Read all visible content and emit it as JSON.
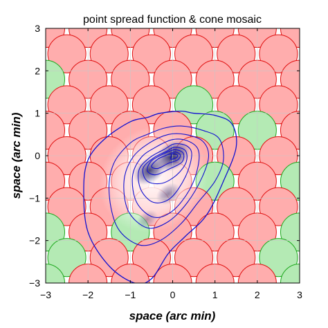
{
  "chart_data": {
    "type": "scatter",
    "title": "point spread function & cone mosaic",
    "xlabel": "space (arc min)",
    "ylabel": "space (arc min)",
    "xlim": [
      -3,
      3
    ],
    "ylim": [
      -3,
      3
    ],
    "xticks": [
      -3,
      -2,
      -1,
      0,
      1,
      2,
      3
    ],
    "yticks": [
      -3,
      -2,
      -1,
      0,
      1,
      2,
      3
    ],
    "grid": true,
    "colors": {
      "l_cone_fill": "#ffadad",
      "l_cone_stroke": "#e01010",
      "m_cone_fill": "#b4eab4",
      "m_cone_stroke": "#1ea81e",
      "contour": "#1010d0",
      "psf_core": "#1c1c5a"
    },
    "cone_diameter_arcmin": 0.9,
    "cone_mosaic": [
      {
        "x": -3.0,
        "y": 3.0,
        "type": "L"
      },
      {
        "x": -2.0,
        "y": 3.0,
        "type": "L"
      },
      {
        "x": -1.0,
        "y": 3.0,
        "type": "L"
      },
      {
        "x": 0.0,
        "y": 3.0,
        "type": "L"
      },
      {
        "x": 1.0,
        "y": 3.0,
        "type": "L"
      },
      {
        "x": 2.0,
        "y": 3.0,
        "type": "L"
      },
      {
        "x": 3.0,
        "y": 3.0,
        "type": "L"
      },
      {
        "x": -2.5,
        "y": 2.4,
        "type": "L"
      },
      {
        "x": -1.5,
        "y": 2.4,
        "type": "L"
      },
      {
        "x": -0.5,
        "y": 2.4,
        "type": "L"
      },
      {
        "x": 0.5,
        "y": 2.4,
        "type": "L"
      },
      {
        "x": 1.5,
        "y": 2.4,
        "type": "L"
      },
      {
        "x": 2.5,
        "y": 2.4,
        "type": "L"
      },
      {
        "x": -3.0,
        "y": 1.8,
        "type": "M"
      },
      {
        "x": -2.0,
        "y": 1.8,
        "type": "L"
      },
      {
        "x": -1.0,
        "y": 1.8,
        "type": "L"
      },
      {
        "x": 0.0,
        "y": 1.8,
        "type": "L"
      },
      {
        "x": 1.0,
        "y": 1.8,
        "type": "L"
      },
      {
        "x": 2.0,
        "y": 1.8,
        "type": "L"
      },
      {
        "x": 3.0,
        "y": 1.8,
        "type": "L"
      },
      {
        "x": -2.5,
        "y": 1.2,
        "type": "L"
      },
      {
        "x": -1.5,
        "y": 1.2,
        "type": "L"
      },
      {
        "x": -0.5,
        "y": 1.2,
        "type": "L"
      },
      {
        "x": 0.5,
        "y": 1.2,
        "type": "M"
      },
      {
        "x": 1.5,
        "y": 1.2,
        "type": "L"
      },
      {
        "x": 2.5,
        "y": 1.2,
        "type": "L"
      },
      {
        "x": -3.0,
        "y": 0.6,
        "type": "L"
      },
      {
        "x": -2.0,
        "y": 0.6,
        "type": "L"
      },
      {
        "x": -1.0,
        "y": 0.6,
        "type": "L"
      },
      {
        "x": 0.0,
        "y": 0.6,
        "type": "L"
      },
      {
        "x": 1.0,
        "y": 0.6,
        "type": "M"
      },
      {
        "x": 2.0,
        "y": 0.6,
        "type": "M"
      },
      {
        "x": 3.0,
        "y": 0.6,
        "type": "L"
      },
      {
        "x": -2.5,
        "y": 0.0,
        "type": "L"
      },
      {
        "x": -1.5,
        "y": 0.0,
        "type": "L"
      },
      {
        "x": -0.5,
        "y": 0.0,
        "type": "L"
      },
      {
        "x": 0.5,
        "y": 0.0,
        "type": "L"
      },
      {
        "x": 1.5,
        "y": 0.0,
        "type": "L"
      },
      {
        "x": 2.5,
        "y": 0.0,
        "type": "L"
      },
      {
        "x": -3.0,
        "y": -0.6,
        "type": "L"
      },
      {
        "x": -2.0,
        "y": -0.6,
        "type": "L"
      },
      {
        "x": -1.0,
        "y": -0.6,
        "type": "L"
      },
      {
        "x": 0.0,
        "y": -0.6,
        "type": "L"
      },
      {
        "x": 1.0,
        "y": -0.6,
        "type": "M"
      },
      {
        "x": 2.0,
        "y": -0.6,
        "type": "L"
      },
      {
        "x": 3.0,
        "y": -0.6,
        "type": "M"
      },
      {
        "x": -2.5,
        "y": -1.2,
        "type": "L"
      },
      {
        "x": -1.5,
        "y": -1.2,
        "type": "L"
      },
      {
        "x": -0.5,
        "y": -1.2,
        "type": "L"
      },
      {
        "x": 0.5,
        "y": -1.2,
        "type": "L"
      },
      {
        "x": 1.5,
        "y": -1.2,
        "type": "L"
      },
      {
        "x": 2.5,
        "y": -1.2,
        "type": "L"
      },
      {
        "x": -3.0,
        "y": -1.8,
        "type": "M"
      },
      {
        "x": -2.0,
        "y": -1.8,
        "type": "L"
      },
      {
        "x": -1.0,
        "y": -1.8,
        "type": "M"
      },
      {
        "x": 0.0,
        "y": -1.8,
        "type": "L"
      },
      {
        "x": 1.0,
        "y": -1.8,
        "type": "L"
      },
      {
        "x": 2.0,
        "y": -1.8,
        "type": "L"
      },
      {
        "x": 3.0,
        "y": -1.8,
        "type": "M"
      },
      {
        "x": -2.5,
        "y": -2.4,
        "type": "M"
      },
      {
        "x": -1.5,
        "y": -2.4,
        "type": "L"
      },
      {
        "x": -0.5,
        "y": -2.4,
        "type": "L"
      },
      {
        "x": 0.5,
        "y": -2.4,
        "type": "L"
      },
      {
        "x": 1.5,
        "y": -2.4,
        "type": "L"
      },
      {
        "x": 2.5,
        "y": -2.4,
        "type": "M"
      },
      {
        "x": -3.0,
        "y": -3.0,
        "type": "M"
      },
      {
        "x": -2.0,
        "y": -3.0,
        "type": "L"
      },
      {
        "x": -1.0,
        "y": -3.0,
        "type": "L"
      },
      {
        "x": 0.0,
        "y": -3.0,
        "type": "L"
      },
      {
        "x": 1.0,
        "y": -3.0,
        "type": "L"
      },
      {
        "x": 2.0,
        "y": -3.0,
        "type": "L"
      },
      {
        "x": 3.0,
        "y": -3.0,
        "type": "M"
      }
    ],
    "psf_contours": [
      [
        [
          -0.3,
          1.0
        ],
        [
          0.2,
          1.05
        ],
        [
          0.5,
          1.0
        ],
        [
          1.0,
          0.95
        ],
        [
          1.4,
          0.75
        ],
        [
          1.5,
          0.2
        ],
        [
          1.2,
          -0.6
        ],
        [
          0.8,
          -1.4
        ],
        [
          0.3,
          -1.9
        ],
        [
          -0.1,
          -2.3
        ],
        [
          -0.5,
          -2.9
        ],
        [
          -0.9,
          -3.0
        ],
        [
          -1.5,
          -2.6
        ],
        [
          -2.0,
          -1.8
        ],
        [
          -2.1,
          -0.8
        ],
        [
          -2.0,
          -0.1
        ],
        [
          -1.6,
          0.4
        ],
        [
          -1.0,
          0.8
        ],
        [
          -0.6,
          0.9
        ]
      ],
      [
        [
          -0.2,
          0.65
        ],
        [
          0.2,
          0.7
        ],
        [
          0.7,
          0.6
        ],
        [
          1.1,
          0.4
        ],
        [
          1.2,
          -0.1
        ],
        [
          1.0,
          -0.6
        ],
        [
          0.6,
          -1.1
        ],
        [
          0.2,
          -1.6
        ],
        [
          -0.3,
          -2.0
        ],
        [
          -0.8,
          -2.1
        ],
        [
          -1.3,
          -1.7
        ],
        [
          -1.5,
          -0.9
        ],
        [
          -1.4,
          -0.2
        ],
        [
          -1.0,
          0.3
        ],
        [
          -0.6,
          0.5
        ]
      ],
      [
        [
          -0.1,
          0.5
        ],
        [
          0.3,
          0.5
        ],
        [
          0.7,
          0.35
        ],
        [
          0.85,
          0.0
        ],
        [
          0.7,
          -0.5
        ],
        [
          0.35,
          -1.1
        ],
        [
          -0.1,
          -1.55
        ],
        [
          -0.6,
          -1.7
        ],
        [
          -1.05,
          -1.3
        ],
        [
          -1.15,
          -0.6
        ],
        [
          -0.95,
          -0.05
        ],
        [
          -0.55,
          0.3
        ]
      ],
      [
        [
          0.0,
          0.38
        ],
        [
          0.35,
          0.35
        ],
        [
          0.6,
          0.15
        ],
        [
          0.6,
          -0.25
        ],
        [
          0.4,
          -0.8
        ],
        [
          0.0,
          -1.3
        ],
        [
          -0.45,
          -1.45
        ],
        [
          -0.85,
          -1.1
        ],
        [
          -0.95,
          -0.5
        ],
        [
          -0.75,
          -0.05
        ],
        [
          -0.4,
          0.2
        ]
      ],
      [
        [
          0.05,
          0.28
        ],
        [
          0.35,
          0.22
        ],
        [
          0.45,
          0.0
        ],
        [
          0.3,
          -0.5
        ],
        [
          -0.05,
          -1.0
        ],
        [
          -0.45,
          -1.1
        ],
        [
          -0.75,
          -0.8
        ],
        [
          -0.8,
          -0.35
        ],
        [
          -0.55,
          -0.05
        ],
        [
          -0.2,
          0.15
        ]
      ],
      [
        [
          0.05,
          0.2
        ],
        [
          0.3,
          0.12
        ],
        [
          0.32,
          -0.15
        ],
        [
          0.1,
          -0.45
        ],
        [
          -0.25,
          -0.65
        ],
        [
          -0.6,
          -0.6
        ],
        [
          -0.7,
          -0.3
        ],
        [
          -0.45,
          -0.05
        ],
        [
          -0.15,
          0.1
        ]
      ],
      [
        [
          0.05,
          0.14
        ],
        [
          0.25,
          0.06
        ],
        [
          0.22,
          -0.15
        ],
        [
          -0.05,
          -0.3
        ],
        [
          -0.4,
          -0.45
        ],
        [
          -0.6,
          -0.35
        ],
        [
          -0.5,
          -0.12
        ],
        [
          -0.2,
          0.05
        ]
      ],
      [
        [
          0.05,
          0.09
        ],
        [
          0.18,
          0.02
        ],
        [
          0.12,
          -0.1
        ],
        [
          -0.1,
          -0.18
        ],
        [
          -0.35,
          -0.3
        ],
        [
          -0.5,
          -0.25
        ],
        [
          -0.35,
          -0.08
        ],
        [
          -0.1,
          0.03
        ]
      ],
      [
        [
          0.03,
          0.05
        ],
        [
          0.12,
          0.0
        ],
        [
          0.06,
          -0.06
        ],
        [
          -0.05,
          -0.08
        ],
        [
          -0.02,
          0.03
        ]
      ]
    ],
    "psf_peaks": [
      {
        "x": 0.0,
        "y": 0.0,
        "intensity": 1.0
      },
      {
        "x": -0.55,
        "y": -0.35,
        "intensity": 0.85
      },
      {
        "x": -0.1,
        "y": -0.9,
        "intensity": 0.5
      },
      {
        "x": -0.6,
        "y": -1.5,
        "intensity": 0.35
      }
    ]
  }
}
